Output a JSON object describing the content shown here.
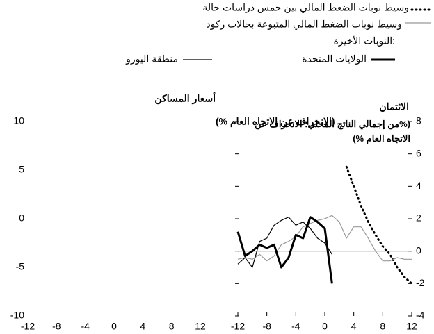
{
  "chart_data": [
    {
      "type": "line",
      "title": "أسعار المساكن",
      "subtitle": "(الانحراف عن الاتجاه العام %)",
      "xlim": [
        -12,
        12
      ],
      "xticks": [
        -12,
        -8,
        -4,
        0,
        4,
        8,
        12
      ],
      "ylim": [
        -10,
        10
      ],
      "yticks": [
        -10,
        -5,
        0,
        5,
        10
      ]
    },
    {
      "type": "line",
      "title": "الائتمان",
      "subtitle": "(%من إجمالي الناتج المحلي؛ الانحراف عن الاتجاه العام %)",
      "legend_title": "النوبات الأخيرة:",
      "xlim": [
        -12,
        12
      ],
      "xticks": [
        -12,
        -8,
        -4,
        0,
        4,
        8,
        12
      ],
      "ylim": [
        -4,
        8
      ],
      "yticks": [
        -4,
        -2,
        0,
        2,
        4,
        6,
        8
      ],
      "x": [
        -12,
        -11,
        -10,
        -9,
        -8,
        -7,
        -6,
        -5,
        -4,
        -3,
        -2,
        -1,
        0,
        1,
        2,
        3,
        4,
        5,
        6,
        7,
        8,
        9,
        10,
        11,
        12
      ],
      "series": [
        {
          "name": "وسيط نوبات الضغط المالي بين خمس دراسات حالة",
          "color": "#000000",
          "style": "dotted",
          "values": [
            null,
            null,
            null,
            null,
            null,
            null,
            null,
            null,
            null,
            null,
            null,
            null,
            null,
            null,
            null,
            5.2,
            4,
            2.8,
            1.8,
            1,
            0.3,
            -0.2,
            -1,
            -1.6,
            -2
          ]
        },
        {
          "name": "وسيط نوبات الضغط المالي المتبوعة بحالات ركود",
          "color": "#999999",
          "style": "thin",
          "values": [
            -0.5,
            -0.4,
            -0.5,
            -0.2,
            -0.6,
            -0.3,
            0.4,
            0.6,
            0.9,
            1.5,
            1.7,
            1.9,
            2,
            2.2,
            1.8,
            0.8,
            1.5,
            1.5,
            0.8,
            0,
            -0.6,
            -0.6,
            -0.4,
            -0.5,
            -0.5
          ]
        },
        {
          "name": "الولايات المتحدة",
          "color": "#000000",
          "style": "thick",
          "values": [
            1.2,
            -0.3,
            0,
            0.4,
            0.2,
            0.4,
            -1,
            -0.4,
            1,
            0.8,
            2.1,
            1.8,
            1.4,
            -2,
            null,
            null,
            null,
            null,
            null,
            null,
            null,
            null,
            null,
            null,
            null
          ]
        },
        {
          "name": "منطقة اليورو",
          "color": "#000000",
          "style": "thin",
          "values": [
            -0.8,
            -0.4,
            -1,
            0.6,
            0.8,
            1.6,
            1.9,
            2.1,
            1.6,
            1.8,
            1.4,
            0.8,
            0.5,
            -0.2,
            null,
            null,
            null,
            null,
            null,
            null,
            null,
            null,
            null,
            null,
            null
          ]
        }
      ]
    }
  ]
}
